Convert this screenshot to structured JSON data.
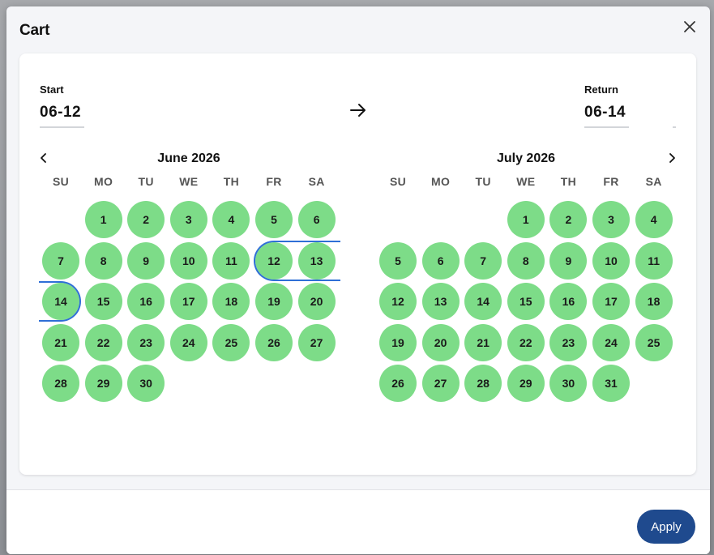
{
  "modal": {
    "title": "Cart"
  },
  "dates": {
    "start_label": "Start",
    "start_value": "06-12",
    "return_label": "Return",
    "return_value": "06-14"
  },
  "weekdays": [
    "SU",
    "MO",
    "TU",
    "WE",
    "TH",
    "FR",
    "SA"
  ],
  "months": [
    {
      "title": "June 2026",
      "first_weekday": 1,
      "days": 30
    },
    {
      "title": "July 2026",
      "first_weekday": 3,
      "days": 31
    }
  ],
  "selection": {
    "start_day": 12,
    "end_day": 14,
    "month_index": 0
  },
  "colors": {
    "available": "#7ddc88",
    "range_outline": "#2f6fd6",
    "apply": "#1f4a8e"
  },
  "icons": {
    "close": "close-icon",
    "arrow": "arrow-right-icon",
    "prev": "chevron-left-icon",
    "next": "chevron-right-icon"
  },
  "footer": {
    "apply_label": "Apply"
  }
}
